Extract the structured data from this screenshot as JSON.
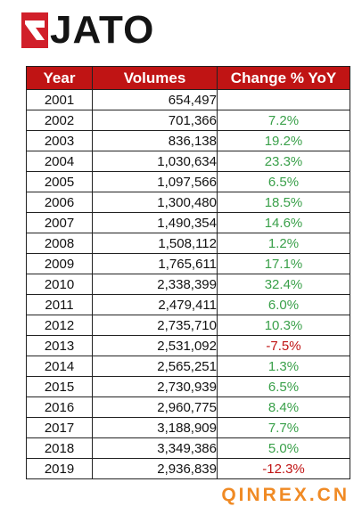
{
  "brand": {
    "name": "JATO",
    "mark_color": "#d11f2a"
  },
  "table": {
    "header": {
      "year": "Year",
      "volumes": "Volumes",
      "change": "Change % YoY"
    },
    "rows": [
      {
        "year": "2001",
        "volumes": "654,497",
        "change": ""
      },
      {
        "year": "2002",
        "volumes": "701,366",
        "change": "7.2%"
      },
      {
        "year": "2003",
        "volumes": "836,138",
        "change": "19.2%"
      },
      {
        "year": "2004",
        "volumes": "1,030,634",
        "change": "23.3%"
      },
      {
        "year": "2005",
        "volumes": "1,097,566",
        "change": "6.5%"
      },
      {
        "year": "2006",
        "volumes": "1,300,480",
        "change": "18.5%"
      },
      {
        "year": "2007",
        "volumes": "1,490,354",
        "change": "14.6%"
      },
      {
        "year": "2008",
        "volumes": "1,508,112",
        "change": "1.2%"
      },
      {
        "year": "2009",
        "volumes": "1,765,611",
        "change": "17.1%"
      },
      {
        "year": "2010",
        "volumes": "2,338,399",
        "change": "32.4%"
      },
      {
        "year": "2011",
        "volumes": "2,479,411",
        "change": "6.0%"
      },
      {
        "year": "2012",
        "volumes": "2,735,710",
        "change": "10.3%"
      },
      {
        "year": "2013",
        "volumes": "2,531,092",
        "change": "-7.5%"
      },
      {
        "year": "2014",
        "volumes": "2,565,251",
        "change": "1.3%"
      },
      {
        "year": "2015",
        "volumes": "2,730,939",
        "change": "6.5%"
      },
      {
        "year": "2016",
        "volumes": "2,960,775",
        "change": "8.4%"
      },
      {
        "year": "2017",
        "volumes": "3,188,909",
        "change": "7.7%"
      },
      {
        "year": "2018",
        "volumes": "3,349,386",
        "change": "5.0%"
      },
      {
        "year": "2019",
        "volumes": "2,936,839",
        "change": "-12.3%"
      }
    ]
  },
  "colors": {
    "header_bg": "#c01414",
    "positive": "#3aa04a",
    "negative": "#c01414",
    "watermark": "#f08a24"
  },
  "watermark": "QINREX.CN",
  "chart_data": {
    "type": "table",
    "columns": [
      "Year",
      "Volumes",
      "Change % YoY"
    ],
    "rows": [
      [
        2001,
        654497,
        null
      ],
      [
        2002,
        701366,
        7.2
      ],
      [
        2003,
        836138,
        19.2
      ],
      [
        2004,
        1030634,
        23.3
      ],
      [
        2005,
        1097566,
        6.5
      ],
      [
        2006,
        1300480,
        18.5
      ],
      [
        2007,
        1490354,
        14.6
      ],
      [
        2008,
        1508112,
        1.2
      ],
      [
        2009,
        1765611,
        17.1
      ],
      [
        2010,
        2338399,
        32.4
      ],
      [
        2011,
        2479411,
        6.0
      ],
      [
        2012,
        2735710,
        10.3
      ],
      [
        2013,
        2531092,
        -7.5
      ],
      [
        2014,
        2565251,
        1.3
      ],
      [
        2015,
        2730939,
        6.5
      ],
      [
        2016,
        2960775,
        8.4
      ],
      [
        2017,
        3188909,
        7.7
      ],
      [
        2018,
        3349386,
        5.0
      ],
      [
        2019,
        2936839,
        -12.3
      ]
    ]
  }
}
